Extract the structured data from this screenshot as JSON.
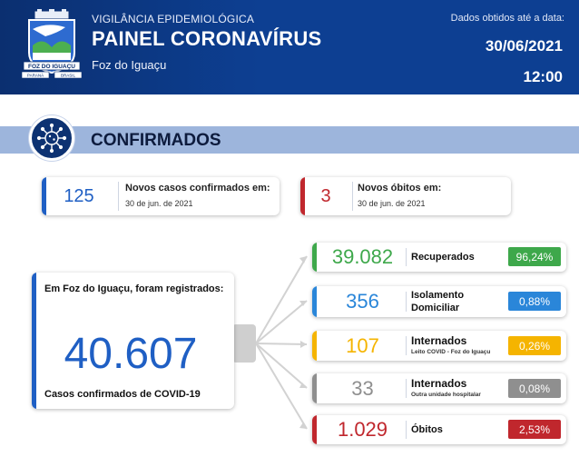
{
  "header": {
    "subtitle": "VIGILÂNCIA EPIDEMIOLÓGICA",
    "title": "PAINEL CORONAVÍRUS",
    "city": "Foz do Iguaçu",
    "data_label": "Dados obtidos até a data:",
    "date": "30/06/2021",
    "time": "12:00",
    "crest": {
      "banner_text": "FOZ DO IGUAÇU",
      "left_text": "PARANÁ",
      "right_text": "BRASIL"
    }
  },
  "section": {
    "title": "CONFIRMADOS",
    "icon": "virus-icon"
  },
  "new_cases": {
    "value": "125",
    "title": "Novos casos confirmados em:",
    "date": "30 de jun. de 2021",
    "color": "#1f5fc4"
  },
  "new_deaths": {
    "value": "3",
    "title": "Novos óbitos em:",
    "date": "30 de jun. de 2021",
    "color": "#c0272d"
  },
  "total": {
    "label": "Em Foz do Iguaçu, foram registrados:",
    "value": "40.607",
    "footer": "Casos confirmados de COVID-19",
    "color": "#1f5fc4"
  },
  "rows": [
    {
      "value": "39.082",
      "label": "Recuperados",
      "sublabel": "",
      "percent": "96,24%",
      "color": "#3ea84b"
    },
    {
      "value": "356",
      "label": "Isolamento Domiciliar",
      "sublabel": "",
      "percent": "0,88%",
      "color": "#2a86d9"
    },
    {
      "value": "107",
      "label": "Internados",
      "sublabel": "Leito COVID - Foz do Iguaçu",
      "percent": "0,26%",
      "color": "#f5b400"
    },
    {
      "value": "33",
      "label": "Internados",
      "sublabel": "Outra unidade hospitalar",
      "percent": "0,08%",
      "color": "#8f8f8f"
    },
    {
      "value": "1.029",
      "label": "Óbitos",
      "sublabel": "",
      "percent": "2,53%",
      "color": "#c0272d"
    }
  ]
}
